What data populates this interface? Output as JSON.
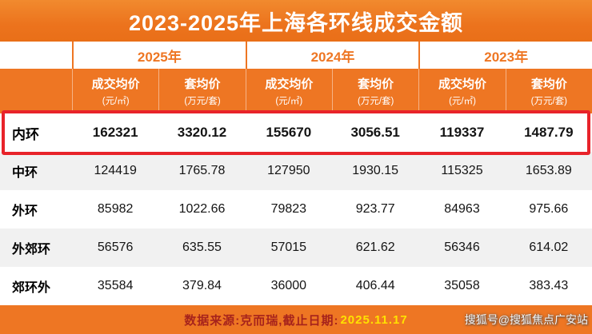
{
  "title": "2023-2025年上海各环线成交金额",
  "chart_data": {
    "type": "table",
    "title": "2023-2025年上海各环线成交金额",
    "year_groups": [
      "2025年",
      "2024年",
      "2023年"
    ],
    "headers": [
      {
        "label": "成交均价",
        "unit": "(元/㎡)"
      },
      {
        "label": "套均价",
        "unit": "(万元/套)"
      },
      {
        "label": "成交均价",
        "unit": "(元/㎡)"
      },
      {
        "label": "套均价",
        "unit": "(万元/套)"
      },
      {
        "label": "成交均价",
        "unit": "(元/㎡)"
      },
      {
        "label": "套均价",
        "unit": "(万元/套)"
      }
    ],
    "rows": [
      {
        "name": "内环",
        "highlight": true,
        "values": [
          "162321",
          "3320.12",
          "155670",
          "3056.51",
          "119337",
          "1487.79"
        ]
      },
      {
        "name": "中环",
        "highlight": false,
        "values": [
          "124419",
          "1765.78",
          "127950",
          "1930.15",
          "115325",
          "1653.89"
        ]
      },
      {
        "name": "外环",
        "highlight": false,
        "values": [
          "85982",
          "1022.66",
          "79823",
          "923.77",
          "84963",
          "975.66"
        ]
      },
      {
        "name": "外郊环",
        "highlight": false,
        "values": [
          "56576",
          "635.55",
          "57015",
          "621.62",
          "56346",
          "614.02"
        ]
      },
      {
        "name": "郊环外",
        "highlight": false,
        "values": [
          "35584",
          "379.84",
          "36000",
          "406.44",
          "35058",
          "383.43"
        ]
      }
    ]
  },
  "footer": {
    "source_label": "数据来源:克而瑞,截止日期:",
    "date": "2025.11.17"
  },
  "watermark": {
    "text": "搜狐号@搜狐焦点广安站"
  },
  "colors": {
    "accent_orange": "#ee7623",
    "highlight_red": "#e8232a",
    "row_alt_gray": "#f1f1f1",
    "footer_source_text": "#a6231c",
    "footer_date_text": "#ffe100",
    "title_text": "#ffffff"
  }
}
